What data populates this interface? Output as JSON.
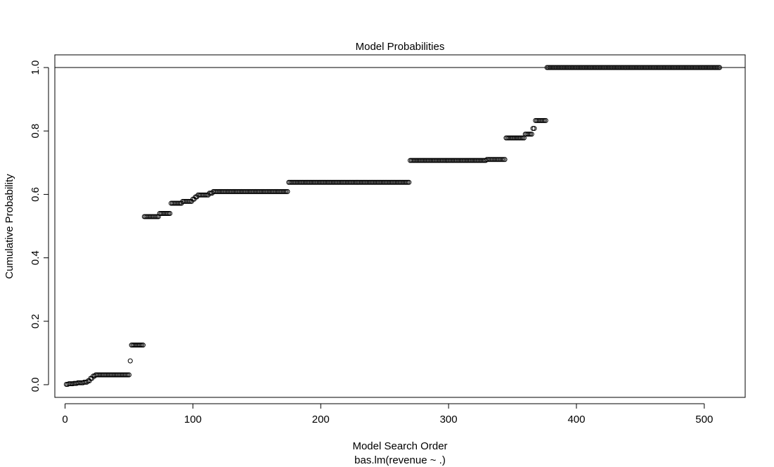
{
  "chart_data": {
    "type": "scatter",
    "title": "Model Probabilities",
    "xlabel": "Model Search Order",
    "subtitle": "bas.lm(revenue ~ .)",
    "ylabel": "Cumulative Probability",
    "xlim": [
      -8,
      532
    ],
    "ylim": [
      -0.04,
      1.04
    ],
    "x_ticks": [
      "0",
      "100",
      "200",
      "300",
      "400",
      "500"
    ],
    "y_ticks": [
      "0.0",
      "0.2",
      "0.4",
      "0.6",
      "0.8",
      "1.0"
    ],
    "reference_line_y": 1.0,
    "marker": "open-circle",
    "grid": false,
    "steps": [
      {
        "x_from": 1,
        "x_to": 2,
        "y": 0.001
      },
      {
        "x_from": 3,
        "x_to": 6,
        "y": 0.003
      },
      {
        "x_from": 7,
        "x_to": 9,
        "y": 0.004
      },
      {
        "x_from": 10,
        "x_to": 14,
        "y": 0.006
      },
      {
        "x_from": 15,
        "x_to": 17,
        "y": 0.008
      },
      {
        "x_from": 18,
        "x_to": 19,
        "y": 0.012
      },
      {
        "x_from": 20,
        "x_to": 21,
        "y": 0.02
      },
      {
        "x_from": 22,
        "x_to": 23,
        "y": 0.027
      },
      {
        "x_from": 24,
        "x_to": 50,
        "y": 0.031
      },
      {
        "x_from": 51,
        "x_to": 51,
        "y": 0.075
      },
      {
        "x_from": 52,
        "x_to": 61,
        "y": 0.125
      },
      {
        "x_from": 62,
        "x_to": 73,
        "y": 0.53
      },
      {
        "x_from": 74,
        "x_to": 82,
        "y": 0.54
      },
      {
        "x_from": 83,
        "x_to": 91,
        "y": 0.572
      },
      {
        "x_from": 92,
        "x_to": 99,
        "y": 0.578
      },
      {
        "x_from": 100,
        "x_to": 101,
        "y": 0.585
      },
      {
        "x_from": 102,
        "x_to": 103,
        "y": 0.592
      },
      {
        "x_from": 104,
        "x_to": 112,
        "y": 0.598
      },
      {
        "x_from": 113,
        "x_to": 115,
        "y": 0.604
      },
      {
        "x_from": 116,
        "x_to": 174,
        "y": 0.609
      },
      {
        "x_from": 175,
        "x_to": 269,
        "y": 0.638
      },
      {
        "x_from": 270,
        "x_to": 329,
        "y": 0.707
      },
      {
        "x_from": 330,
        "x_to": 344,
        "y": 0.71
      },
      {
        "x_from": 345,
        "x_to": 359,
        "y": 0.778
      },
      {
        "x_from": 360,
        "x_to": 365,
        "y": 0.79
      },
      {
        "x_from": 366,
        "x_to": 367,
        "y": 0.808
      },
      {
        "x_from": 368,
        "x_to": 376,
        "y": 0.833
      },
      {
        "x_from": 377,
        "x_to": 512,
        "y": 1.0
      }
    ]
  }
}
